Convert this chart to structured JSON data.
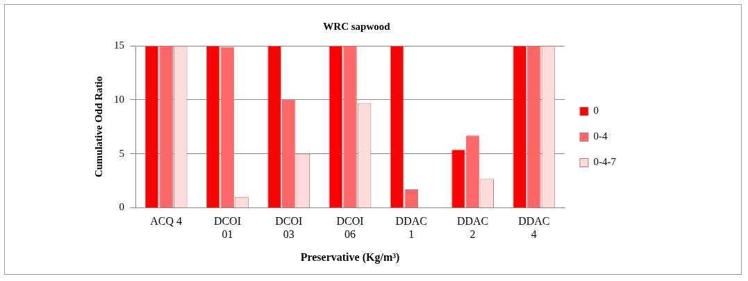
{
  "chart_data": {
    "type": "bar",
    "title": "WRC sapwood",
    "xlabel": "Preservative (Kg/m³)",
    "ylabel": "Cumulative Odd Ratio",
    "categories": [
      "ACQ 4",
      "DCOI 01",
      "DCOI 03",
      "DCOI 06",
      "DDAC 1",
      "DDAC 2",
      "DDAC 4"
    ],
    "series": [
      {
        "name": "0",
        "color": "#ff0000",
        "values": [
          15,
          15,
          15,
          15,
          15,
          5.4,
          15
        ]
      },
      {
        "name": "0-4",
        "color": "#ff6666",
        "values": [
          15,
          14.9,
          10,
          15,
          1.7,
          6.7,
          15
        ]
      },
      {
        "name": "0-4-7",
        "color": "#ffdcdc",
        "values": [
          15,
          1,
          5,
          9.7,
          0,
          2.7,
          15
        ]
      }
    ],
    "ylim": [
      0,
      15
    ],
    "yticks": [
      0,
      5,
      10,
      15
    ],
    "grid": "y",
    "legend": "right"
  }
}
